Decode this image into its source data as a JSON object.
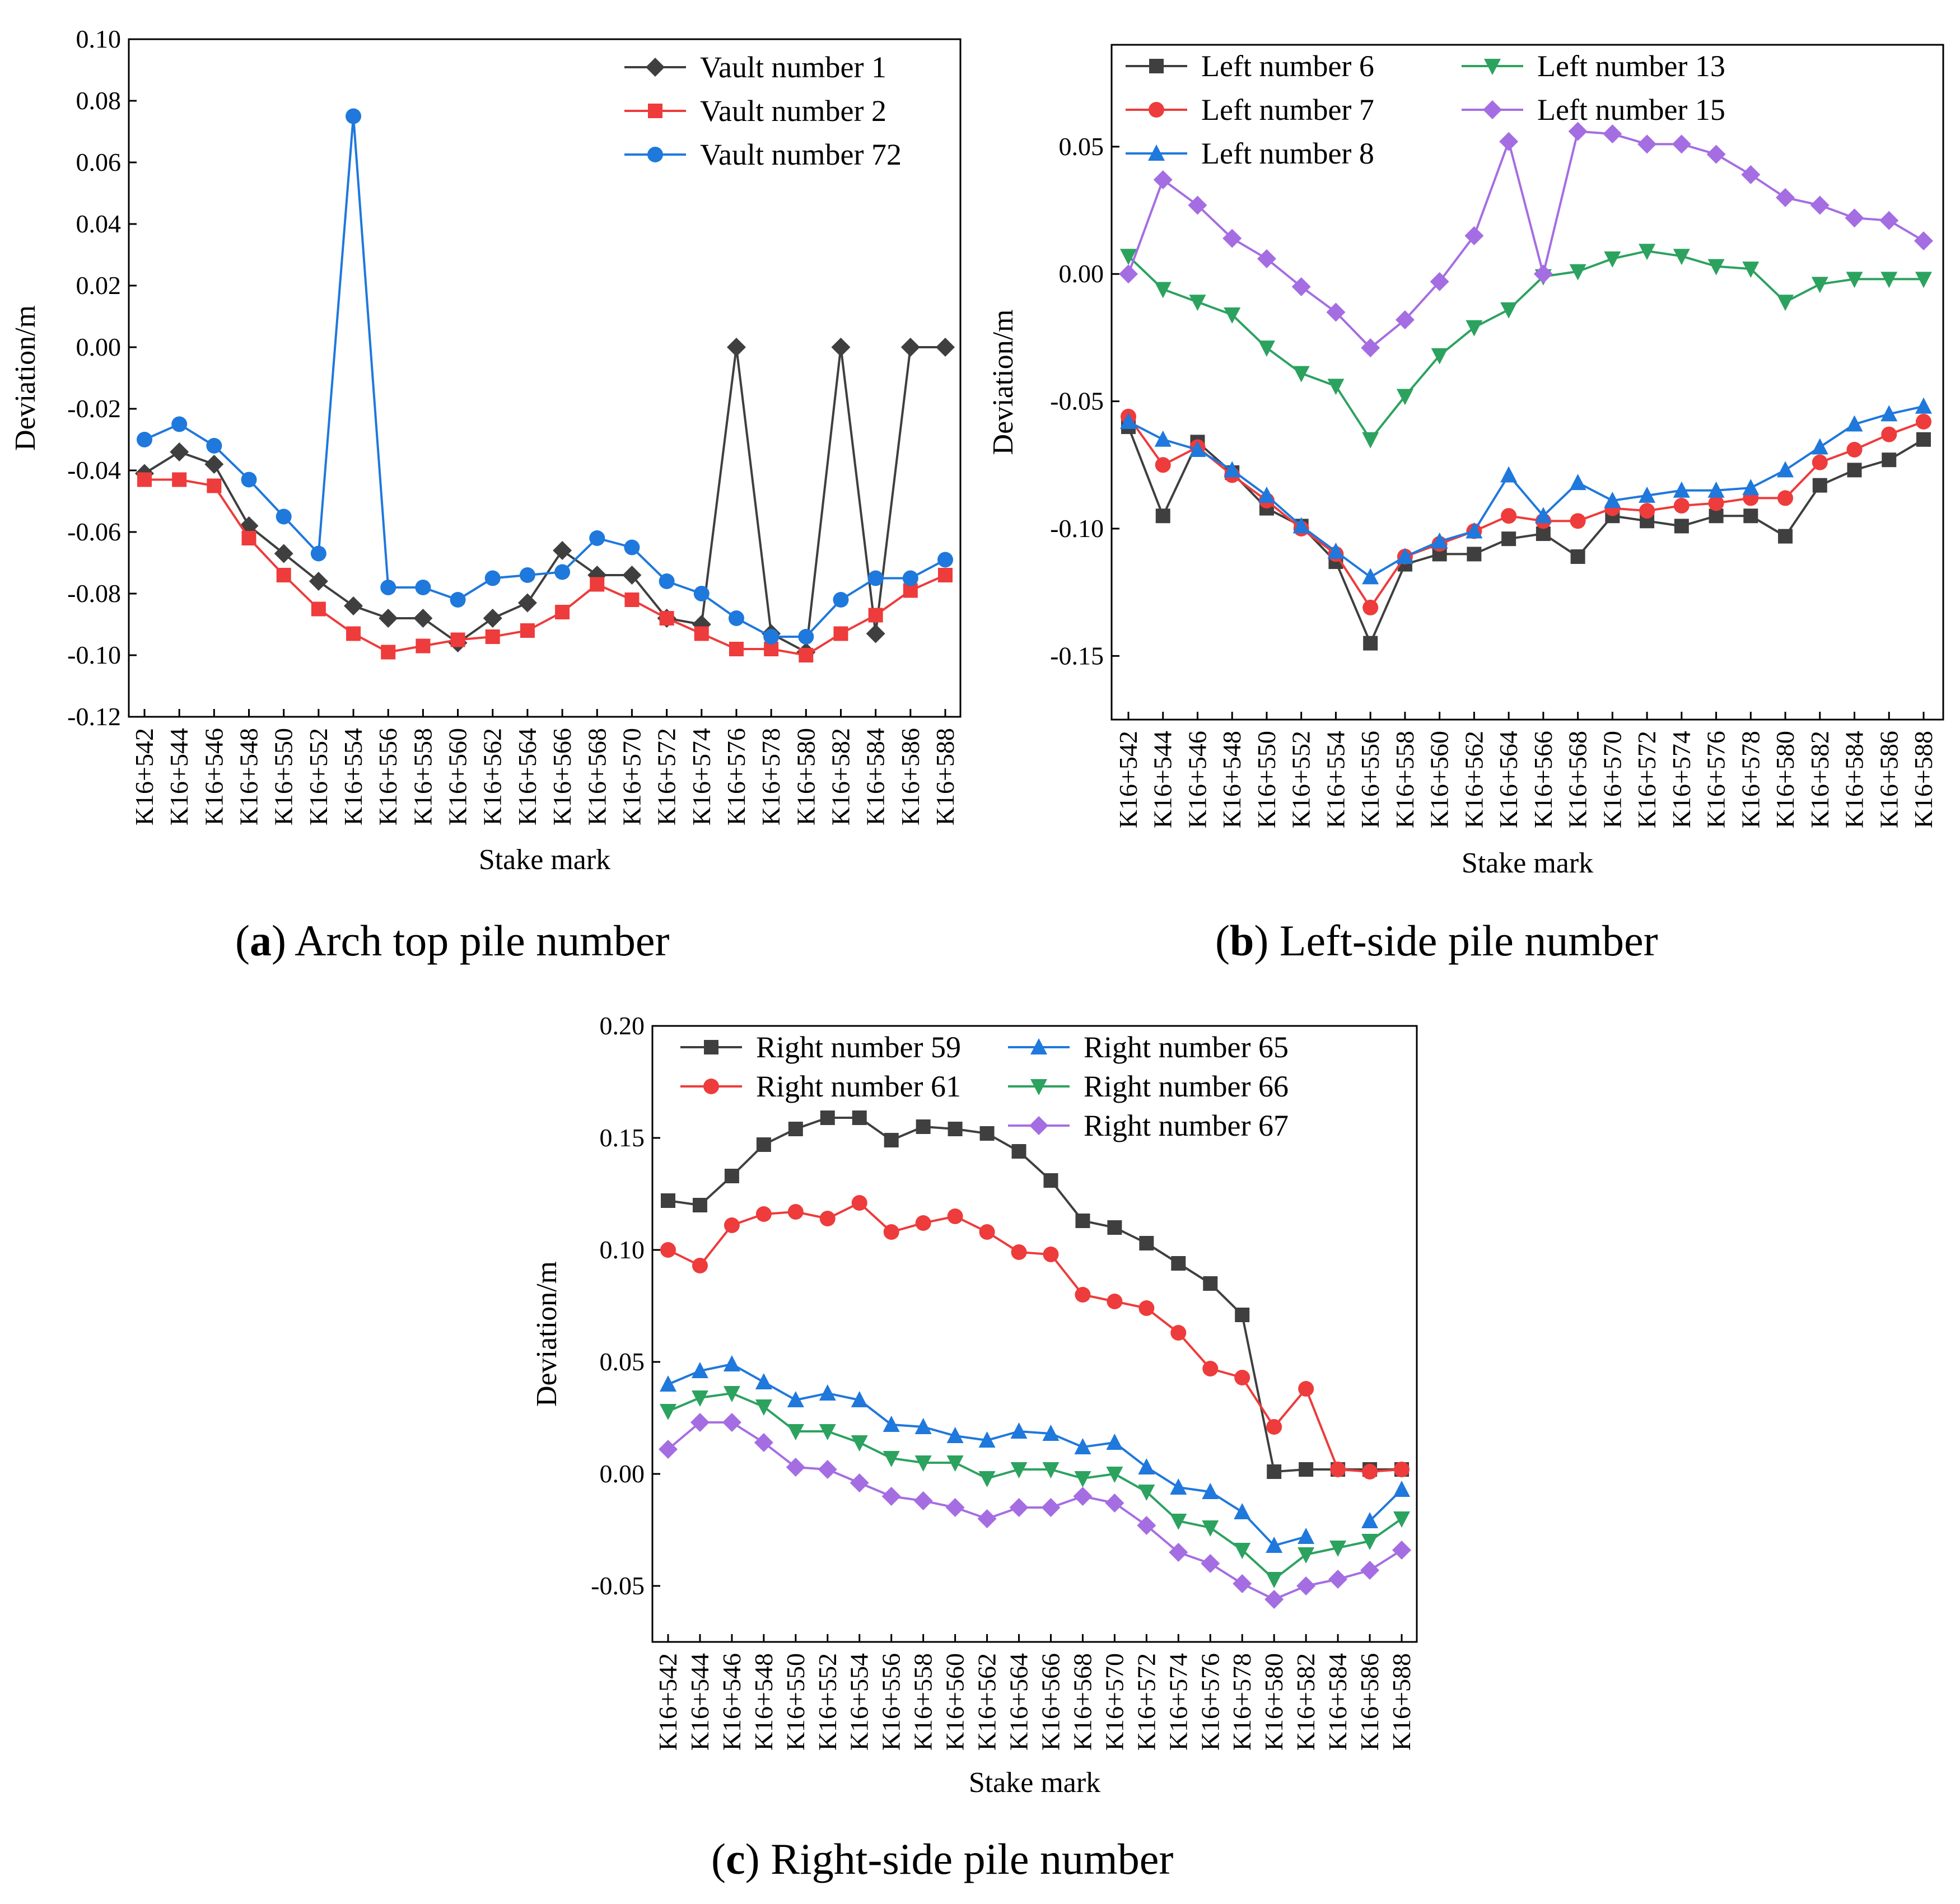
{
  "chart_data": [
    {
      "id": "a",
      "type": "line",
      "caption": {
        "letter": "a",
        "text": "Arch top pile number"
      },
      "xlabel": "Stake mark",
      "ylabel": "Deviation/m",
      "ylim": [
        -0.12,
        0.1
      ],
      "yticks": [
        -0.12,
        -0.1,
        -0.08,
        -0.06,
        -0.04,
        -0.02,
        0.0,
        0.02,
        0.04,
        0.06,
        0.08,
        0.1
      ],
      "ytick_labels": [
        "-0.12",
        "-0.10",
        "-0.08",
        "-0.06",
        "-0.04",
        "-0.02",
        "0.00",
        "0.02",
        "0.04",
        "0.06",
        "0.08",
        "0.10"
      ],
      "categories": [
        "K16+542",
        "K16+544",
        "K16+546",
        "K16+548",
        "K16+550",
        "K16+552",
        "K16+554",
        "K16+556",
        "K16+558",
        "K16+560",
        "K16+562",
        "K16+564",
        "K16+566",
        "K16+568",
        "K16+570",
        "K16+572",
        "K16+574",
        "K16+576",
        "K16+578",
        "K16+580",
        "K16+582",
        "K16+584",
        "K16+586",
        "K16+588"
      ],
      "legend_position": "top-right",
      "series": [
        {
          "name": "Vault number 1",
          "color": "#3f3f3f",
          "marker": "diamond",
          "values": [
            -0.041,
            -0.034,
            -0.038,
            -0.058,
            -0.067,
            -0.076,
            -0.084,
            -0.088,
            -0.088,
            -0.096,
            -0.088,
            -0.083,
            -0.066,
            -0.074,
            -0.074,
            -0.088,
            -0.09,
            0.0,
            -0.093,
            -0.099,
            0.0,
            -0.093,
            0.0,
            0.0
          ]
        },
        {
          "name": "Vault number 2",
          "color": "#ee3b3b",
          "marker": "square",
          "values": [
            -0.043,
            -0.043,
            -0.045,
            -0.062,
            -0.074,
            -0.085,
            -0.093,
            -0.099,
            -0.097,
            -0.095,
            -0.094,
            -0.092,
            -0.086,
            -0.077,
            -0.082,
            -0.088,
            -0.093,
            -0.098,
            -0.098,
            -0.1,
            -0.093,
            -0.087,
            -0.079,
            -0.074
          ]
        },
        {
          "name": "Vault number 72",
          "color": "#1f78dc",
          "marker": "circle",
          "values": [
            -0.03,
            -0.025,
            -0.032,
            -0.043,
            -0.055,
            -0.067,
            0.075,
            -0.078,
            -0.078,
            -0.082,
            -0.075,
            -0.074,
            -0.073,
            -0.062,
            -0.065,
            -0.076,
            -0.08,
            -0.088,
            -0.094,
            -0.094,
            -0.082,
            -0.075,
            -0.075,
            -0.069
          ]
        }
      ]
    },
    {
      "id": "b",
      "type": "line",
      "caption": {
        "letter": "b",
        "text": "Left-side pile number"
      },
      "xlabel": "Stake mark",
      "ylabel": "Deviation/m",
      "ylim": [
        -0.175,
        0.09
      ],
      "yticks": [
        -0.15,
        -0.1,
        -0.05,
        0.0,
        0.05
      ],
      "ytick_labels": [
        "-0.15",
        "-0.10",
        "-0.05",
        "0.00",
        "0.05"
      ],
      "categories": [
        "K16+542",
        "K16+544",
        "K16+546",
        "K16+548",
        "K16+550",
        "K16+552",
        "K16+554",
        "K16+556",
        "K16+558",
        "K16+560",
        "K16+562",
        "K16+564",
        "K16+566",
        "K16+568",
        "K16+570",
        "K16+572",
        "K16+574",
        "K16+576",
        "K16+578",
        "K16+580",
        "K16+582",
        "K16+584",
        "K16+586",
        "K16+588"
      ],
      "legend_position": "top-left, two columns",
      "series": [
        {
          "name": "Left number 6",
          "color": "#3f3f3f",
          "marker": "square",
          "values": [
            -0.06,
            -0.095,
            -0.066,
            -0.078,
            -0.092,
            -0.099,
            -0.113,
            -0.145,
            -0.114,
            -0.11,
            -0.11,
            -0.104,
            -0.102,
            -0.111,
            -0.095,
            -0.097,
            -0.099,
            -0.095,
            -0.095,
            -0.103,
            -0.083,
            -0.077,
            -0.073,
            -0.065
          ]
        },
        {
          "name": "Left number 7",
          "color": "#ee3b3b",
          "marker": "circle",
          "values": [
            -0.056,
            -0.075,
            -0.068,
            -0.079,
            -0.089,
            -0.1,
            -0.11,
            -0.131,
            -0.111,
            -0.106,
            -0.101,
            -0.095,
            -0.097,
            -0.097,
            -0.092,
            -0.093,
            -0.091,
            -0.09,
            -0.088,
            -0.088,
            -0.074,
            -0.069,
            -0.063,
            -0.058
          ]
        },
        {
          "name": "Left number 8",
          "color": "#1f78dc",
          "marker": "triangle-up",
          "values": [
            -0.058,
            -0.065,
            -0.069,
            -0.077,
            -0.087,
            -0.099,
            -0.109,
            -0.119,
            -0.111,
            -0.105,
            -0.101,
            -0.079,
            -0.095,
            -0.082,
            -0.089,
            -0.087,
            -0.085,
            -0.085,
            -0.084,
            -0.077,
            -0.068,
            -0.059,
            -0.055,
            -0.052
          ]
        },
        {
          "name": "Left number 13",
          "color": "#2ca25f",
          "marker": "triangle-down",
          "values": [
            0.007,
            -0.006,
            -0.011,
            -0.016,
            -0.029,
            -0.039,
            -0.044,
            -0.065,
            -0.048,
            -0.032,
            -0.021,
            -0.014,
            -0.001,
            0.001,
            0.006,
            0.009,
            0.007,
            0.003,
            0.002,
            -0.011,
            -0.004,
            -0.002,
            -0.002,
            -0.002
          ]
        },
        {
          "name": "Left number 15",
          "color": "#a56de2",
          "marker": "diamond",
          "values": [
            0.0,
            0.037,
            0.027,
            0.014,
            0.006,
            -0.005,
            -0.015,
            -0.029,
            -0.018,
            -0.003,
            0.015,
            0.052,
            0.0,
            0.056,
            0.055,
            0.051,
            0.051,
            0.047,
            0.039,
            0.03,
            0.027,
            0.022,
            0.021,
            0.013
          ]
        }
      ]
    },
    {
      "id": "c",
      "type": "line",
      "caption": {
        "letter": "c",
        "text": "Right-side pile number"
      },
      "xlabel": "Stake mark",
      "ylabel": "Deviation/m",
      "ylim": [
        -0.075,
        0.2
      ],
      "yticks": [
        -0.05,
        0.0,
        0.05,
        0.1,
        0.15,
        0.2
      ],
      "ytick_labels": [
        "-0.05",
        "0.00",
        "0.05",
        "0.10",
        "0.15",
        "0.20"
      ],
      "categories": [
        "K16+542",
        "K16+544",
        "K16+546",
        "K16+548",
        "K16+550",
        "K16+552",
        "K16+554",
        "K16+556",
        "K16+558",
        "K16+560",
        "K16+562",
        "K16+564",
        "K16+566",
        "K16+568",
        "K16+570",
        "K16+572",
        "K16+574",
        "K16+576",
        "K16+578",
        "K16+580",
        "K16+582",
        "K16+584",
        "K16+586",
        "K16+588"
      ],
      "legend_position": "top-left, two columns",
      "series": [
        {
          "name": "Right number 59",
          "color": "#3f3f3f",
          "marker": "square",
          "values": [
            0.122,
            0.12,
            0.133,
            0.147,
            0.154,
            0.159,
            0.159,
            0.149,
            0.155,
            0.154,
            0.152,
            0.144,
            0.131,
            0.113,
            0.11,
            0.103,
            0.094,
            0.085,
            0.071,
            0.001,
            0.002,
            0.002,
            0.002,
            0.002
          ]
        },
        {
          "name": "Right number 61",
          "color": "#ee3b3b",
          "marker": "circle",
          "values": [
            0.1,
            0.093,
            0.111,
            0.116,
            0.117,
            0.114,
            0.121,
            0.108,
            0.112,
            0.115,
            0.108,
            0.099,
            0.098,
            0.08,
            0.077,
            0.074,
            0.063,
            0.047,
            0.043,
            0.021,
            0.038,
            0.002,
            0.001,
            0.002
          ]
        },
        {
          "name": "Right number 65",
          "color": "#1f78dc",
          "marker": "triangle-up",
          "values": [
            0.04,
            0.046,
            0.049,
            0.041,
            0.033,
            0.036,
            0.033,
            0.022,
            0.021,
            0.017,
            0.015,
            0.019,
            0.018,
            0.012,
            0.014,
            0.003,
            -0.006,
            -0.008,
            -0.017,
            -0.032,
            -0.028,
            null,
            -0.021,
            -0.007
          ]
        },
        {
          "name": "Right number 66",
          "color": "#2ca25f",
          "marker": "triangle-down",
          "values": [
            0.028,
            0.034,
            0.036,
            0.03,
            0.019,
            0.019,
            0.014,
            0.007,
            0.005,
            0.005,
            -0.002,
            0.002,
            0.002,
            -0.002,
            0.0,
            -0.008,
            -0.021,
            -0.024,
            -0.034,
            -0.047,
            -0.036,
            -0.033,
            -0.03,
            -0.02
          ]
        },
        {
          "name": "Right number 67",
          "color": "#a56de2",
          "marker": "diamond",
          "values": [
            0.011,
            0.023,
            0.023,
            0.014,
            0.003,
            0.002,
            -0.004,
            -0.01,
            -0.012,
            -0.015,
            -0.02,
            -0.015,
            -0.015,
            -0.01,
            -0.013,
            -0.023,
            -0.035,
            -0.04,
            -0.049,
            -0.056,
            -0.05,
            -0.047,
            -0.043,
            -0.034
          ]
        }
      ]
    }
  ]
}
